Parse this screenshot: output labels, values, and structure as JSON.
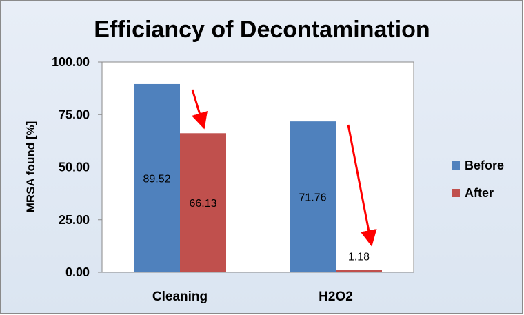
{
  "chart_data": {
    "type": "bar",
    "title": "Efficiancy of Decontamination",
    "xlabel": "",
    "ylabel": "MRSA found [%]",
    "ylim": [
      0,
      100
    ],
    "yticks": [
      0,
      25,
      50,
      75,
      100
    ],
    "ytick_labels": [
      "0.00",
      "25.00",
      "50.00",
      "75.00",
      "100.00"
    ],
    "categories": [
      "Cleaning",
      "H2O2"
    ],
    "series": [
      {
        "name": "Before",
        "color": "#4f81bd",
        "values": [
          89.52,
          71.76
        ],
        "labels": [
          "89.52",
          "71.76"
        ]
      },
      {
        "name": "After",
        "color": "#c0504d",
        "values": [
          66.13,
          1.18
        ],
        "labels": [
          "66.13",
          "1.18"
        ]
      }
    ],
    "legend_position": "right",
    "grid": false,
    "annotations": [
      {
        "type": "arrow",
        "color": "#ff0000",
        "description": "decrease",
        "category": "Cleaning"
      },
      {
        "type": "arrow",
        "color": "#ff0000",
        "description": "decrease",
        "category": "H2O2"
      }
    ]
  }
}
